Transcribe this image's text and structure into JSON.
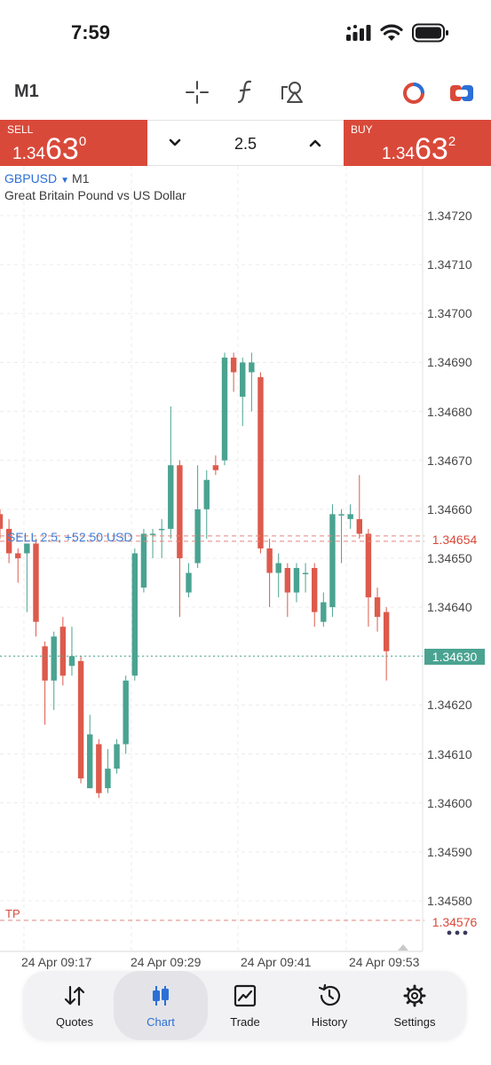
{
  "status_bar": {
    "time": "7:59"
  },
  "toolbar": {
    "timeframe": "M1"
  },
  "trade_panel": {
    "sell": {
      "label": "SELL",
      "price_prefix": "1.34",
      "price_big": "63",
      "price_sup": "0"
    },
    "buy": {
      "label": "BUY",
      "price_prefix": "1.34",
      "price_big": "63",
      "price_sup": "2"
    },
    "lot": "2.5"
  },
  "chart": {
    "symbol": "GBPUSD",
    "timeframe": "M1",
    "description": "Great Britain Pound vs US Dollar",
    "price_labels": [
      "1.34720",
      "1.34710",
      "1.34700",
      "1.34690",
      "1.34680",
      "1.34670",
      "1.34660",
      "1.34650",
      "1.34640",
      "1.34630",
      "1.34620",
      "1.34610",
      "1.34600",
      "1.34590",
      "1.34580"
    ],
    "time_labels": [
      "24 Apr 09:17",
      "24 Apr 09:29",
      "24 Apr 09:41",
      "24 Apr 09:53"
    ],
    "trade_line_label": "SELL 2.5, +52.50 USD",
    "trade_price_tag": "1.34654",
    "current_price_tag": "1.34630",
    "tp_label": "TP",
    "tp_price_tag": "1.34576"
  },
  "chart_data": {
    "type": "candlestick",
    "ylim": [
      1.3457,
      1.3473
    ],
    "y_ticks": [
      1.3472,
      1.3471,
      1.347,
      1.3469,
      1.3468,
      1.3467,
      1.3466,
      1.3465,
      1.3464,
      1.3463,
      1.3462,
      1.3461,
      1.346,
      1.3459,
      1.3458
    ],
    "x_labels": [
      "24 Apr 09:17",
      "24 Apr 09:29",
      "24 Apr 09:41",
      "24 Apr 09:53"
    ],
    "bid": 1.3463,
    "ask": 1.34632,
    "open_position_price": 1.34654,
    "take_profit": 1.34576,
    "candles": [
      {
        "o": 1.34659,
        "h": 1.3466,
        "l": 1.34654,
        "c": 1.34656
      },
      {
        "o": 1.34656,
        "h": 1.34658,
        "l": 1.34649,
        "c": 1.34651
      },
      {
        "o": 1.34651,
        "h": 1.34652,
        "l": 1.34645,
        "c": 1.3465
      },
      {
        "o": 1.34651,
        "h": 1.34653,
        "l": 1.34639,
        "c": 1.34653
      },
      {
        "o": 1.34653,
        "h": 1.34654,
        "l": 1.34634,
        "c": 1.34637
      },
      {
        "o": 1.34632,
        "h": 1.34633,
        "l": 1.34616,
        "c": 1.34625
      },
      {
        "o": 1.34625,
        "h": 1.34635,
        "l": 1.34619,
        "c": 1.34634
      },
      {
        "o": 1.34636,
        "h": 1.34638,
        "l": 1.34624,
        "c": 1.34626
      },
      {
        "o": 1.34628,
        "h": 1.34636,
        "l": 1.34626,
        "c": 1.3463
      },
      {
        "o": 1.34629,
        "h": 1.3463,
        "l": 1.34604,
        "c": 1.34605
      },
      {
        "o": 1.34603,
        "h": 1.34618,
        "l": 1.34603,
        "c": 1.34614
      },
      {
        "o": 1.34612,
        "h": 1.34613,
        "l": 1.34601,
        "c": 1.34602
      },
      {
        "o": 1.34603,
        "h": 1.34611,
        "l": 1.34602,
        "c": 1.34607
      },
      {
        "o": 1.34607,
        "h": 1.34613,
        "l": 1.34606,
        "c": 1.34612
      },
      {
        "o": 1.34612,
        "h": 1.34626,
        "l": 1.3461,
        "c": 1.34625
      },
      {
        "o": 1.34626,
        "h": 1.34652,
        "l": 1.34625,
        "c": 1.34651
      },
      {
        "o": 1.34644,
        "h": 1.34656,
        "l": 1.34643,
        "c": 1.34655
      },
      {
        "o": 1.34655,
        "h": 1.34656,
        "l": 1.3465,
        "c": 1.34655
      },
      {
        "o": 1.34656,
        "h": 1.34658,
        "l": 1.3465,
        "c": 1.34656
      },
      {
        "o": 1.34656,
        "h": 1.34681,
        "l": 1.34654,
        "c": 1.34669
      },
      {
        "o": 1.34669,
        "h": 1.3467,
        "l": 1.34638,
        "c": 1.3465
      },
      {
        "o": 1.34643,
        "h": 1.34649,
        "l": 1.34642,
        "c": 1.34647
      },
      {
        "o": 1.34649,
        "h": 1.34669,
        "l": 1.34648,
        "c": 1.3466
      },
      {
        "o": 1.3466,
        "h": 1.34668,
        "l": 1.34654,
        "c": 1.34666
      },
      {
        "o": 1.34669,
        "h": 1.34671,
        "l": 1.34667,
        "c": 1.34668
      },
      {
        "o": 1.3467,
        "h": 1.34692,
        "l": 1.34669,
        "c": 1.34691
      },
      {
        "o": 1.34691,
        "h": 1.34692,
        "l": 1.34684,
        "c": 1.34688
      },
      {
        "o": 1.34683,
        "h": 1.34691,
        "l": 1.34677,
        "c": 1.3469
      },
      {
        "o": 1.34688,
        "h": 1.34692,
        "l": 1.3468,
        "c": 1.3469
      },
      {
        "o": 1.34687,
        "h": 1.34688,
        "l": 1.34651,
        "c": 1.34652
      },
      {
        "o": 1.34652,
        "h": 1.34654,
        "l": 1.3464,
        "c": 1.34647
      },
      {
        "o": 1.34647,
        "h": 1.34651,
        "l": 1.34642,
        "c": 1.34649
      },
      {
        "o": 1.34648,
        "h": 1.34649,
        "l": 1.34638,
        "c": 1.34643
      },
      {
        "o": 1.34643,
        "h": 1.34649,
        "l": 1.34641,
        "c": 1.34648
      },
      {
        "o": 1.34647,
        "h": 1.34649,
        "l": 1.34643,
        "c": 1.34647
      },
      {
        "o": 1.34648,
        "h": 1.34649,
        "l": 1.34636,
        "c": 1.34639
      },
      {
        "o": 1.34637,
        "h": 1.34643,
        "l": 1.34636,
        "c": 1.34641
      },
      {
        "o": 1.3464,
        "h": 1.34661,
        "l": 1.34638,
        "c": 1.34659
      },
      {
        "o": 1.34659,
        "h": 1.3466,
        "l": 1.34649,
        "c": 1.34659
      },
      {
        "o": 1.34658,
        "h": 1.34661,
        "l": 1.34656,
        "c": 1.34659
      },
      {
        "o": 1.34658,
        "h": 1.34667,
        "l": 1.34654,
        "c": 1.34655
      },
      {
        "o": 1.34655,
        "h": 1.34656,
        "l": 1.34636,
        "c": 1.34642
      },
      {
        "o": 1.34642,
        "h": 1.34644,
        "l": 1.34635,
        "c": 1.34638
      },
      {
        "o": 1.34639,
        "h": 1.3464,
        "l": 1.34625,
        "c": 1.34631
      }
    ]
  },
  "bottom_nav": {
    "items": [
      {
        "label": "Quotes",
        "icon": "sort-arrows-icon"
      },
      {
        "label": "Chart",
        "icon": "candles-icon"
      },
      {
        "label": "Trade",
        "icon": "trend-chart-icon"
      },
      {
        "label": "History",
        "icon": "history-clock-icon"
      },
      {
        "label": "Settings",
        "icon": "gear-icon"
      }
    ]
  },
  "colors": {
    "sell": "#d9493a",
    "bull": "#4aa391",
    "bear": "#dd5a4c",
    "accent": "#2c6fd6"
  }
}
